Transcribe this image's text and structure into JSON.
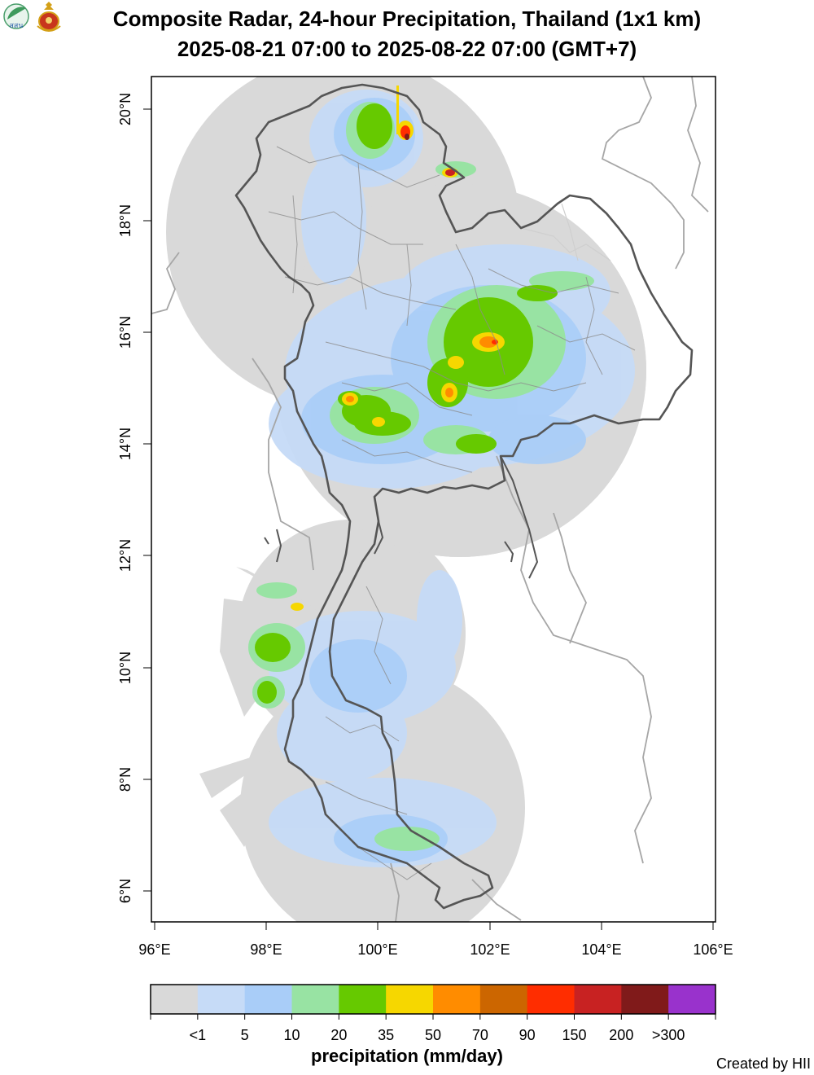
{
  "title_line1": "Composite Radar, 24-hour Precipitation, Thailand (1x1 km)",
  "title_line2": "2025-08-21 07:00 to 2025-08-22 07:00 (GMT+7)",
  "logos": [
    "leaf-logo",
    "royal-emblem-logo"
  ],
  "logo_text": "สสน",
  "map": {
    "lon_ticks": [
      "96°E",
      "98°E",
      "100°E",
      "102°E",
      "104°E",
      "106°E"
    ],
    "lat_ticks": [
      "6°N",
      "8°N",
      "10°N",
      "12°N",
      "14°N",
      "16°N",
      "18°N",
      "20°N"
    ]
  },
  "colorbar": {
    "title": "precipitation (mm/day)",
    "labels": [
      "<1",
      "5",
      "10",
      "20",
      "35",
      "50",
      "70",
      "90",
      "150",
      "200",
      ">300"
    ],
    "colors": [
      "#d9d9d9",
      "#c6dbf7",
      "#a9cdf8",
      "#98e3a3",
      "#66c900",
      "#f6d700",
      "#ff8c00",
      "#cc6600",
      "#ff2d00",
      "#c82222",
      "#801a1a",
      "#9932cc"
    ]
  },
  "credit": "Created by HII"
}
